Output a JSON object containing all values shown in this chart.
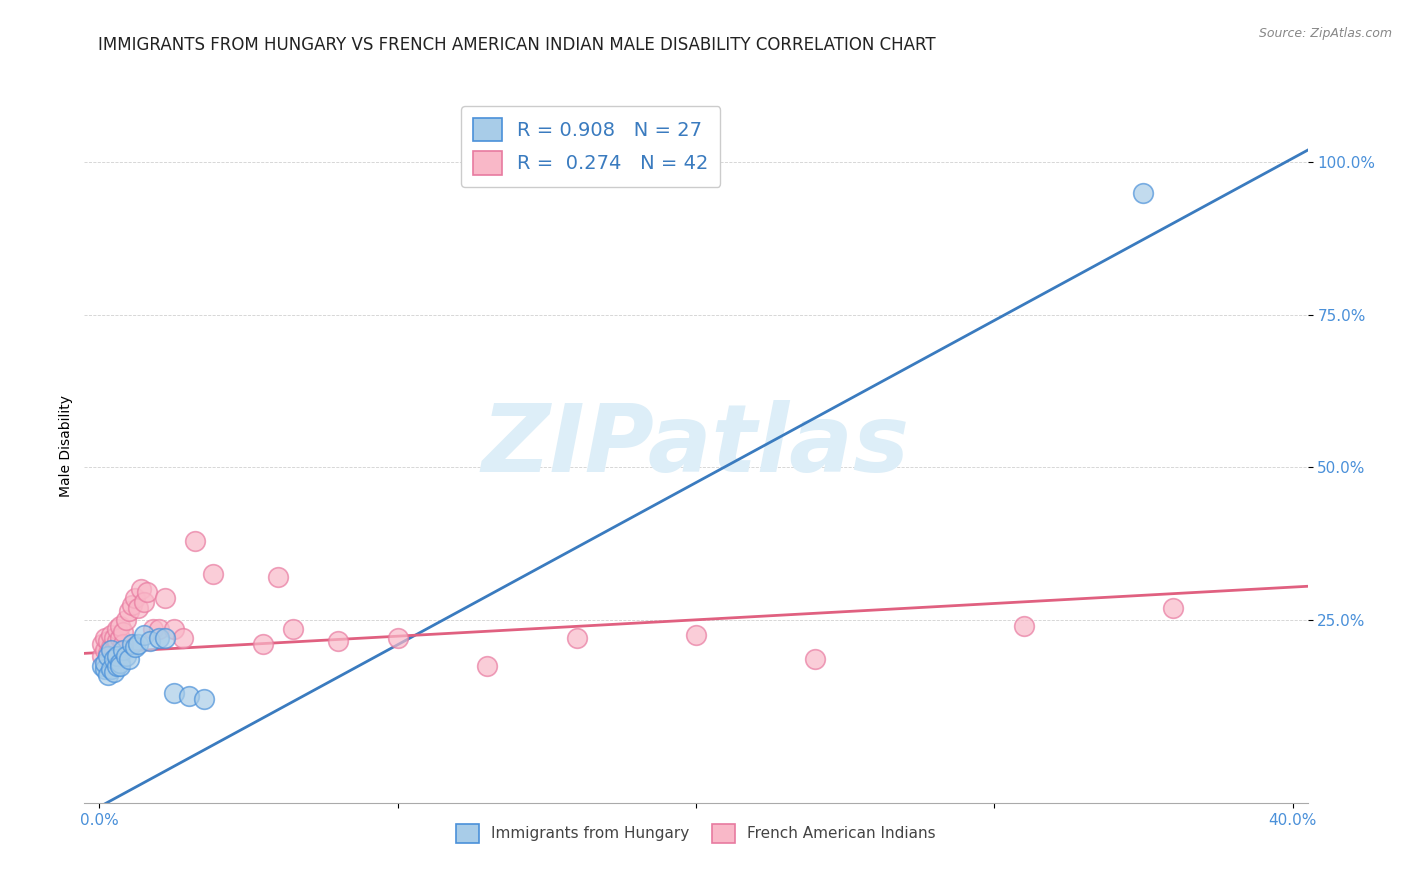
{
  "title": "IMMIGRANTS FROM HUNGARY VS FRENCH AMERICAN INDIAN MALE DISABILITY CORRELATION CHART",
  "source": "Source: ZipAtlas.com",
  "ylabel": "Male Disability",
  "xlim": [
    -0.005,
    0.405
  ],
  "ylim": [
    -0.05,
    1.12
  ],
  "ytick_vals": [
    0.25,
    0.5,
    0.75,
    1.0
  ],
  "ytick_labels": [
    "25.0%",
    "50.0%",
    "75.0%",
    "100.0%"
  ],
  "xtick_vals": [
    0.0,
    0.1,
    0.2,
    0.3,
    0.4
  ],
  "xtick_labels": [
    "0.0%",
    "",
    "",
    "",
    "40.0%"
  ],
  "blue_R": 0.908,
  "blue_N": 27,
  "pink_R": 0.274,
  "pink_N": 42,
  "blue_scatter_color": "#a8cce8",
  "pink_scatter_color": "#f9b8c8",
  "blue_edge_color": "#4a90d9",
  "pink_edge_color": "#e87aa0",
  "blue_line_color": "#3a7bbf",
  "pink_line_color": "#e06080",
  "tick_color": "#4a90d9",
  "watermark_text": "ZIPatlas",
  "watermark_color": "#ddeef8",
  "blue_line_x0": -0.005,
  "blue_line_y0": -0.07,
  "blue_line_x1": 0.405,
  "blue_line_y1": 1.02,
  "pink_line_x0": -0.005,
  "pink_line_y0": 0.195,
  "pink_line_x1": 0.405,
  "pink_line_y1": 0.305,
  "blue_scatter_x": [
    0.001,
    0.002,
    0.002,
    0.003,
    0.003,
    0.004,
    0.004,
    0.005,
    0.005,
    0.006,
    0.006,
    0.007,
    0.007,
    0.008,
    0.009,
    0.01,
    0.011,
    0.012,
    0.013,
    0.015,
    0.017,
    0.02,
    0.022,
    0.025,
    0.03,
    0.035,
    0.35
  ],
  "blue_scatter_y": [
    0.175,
    0.17,
    0.18,
    0.16,
    0.19,
    0.17,
    0.2,
    0.165,
    0.185,
    0.175,
    0.19,
    0.18,
    0.175,
    0.2,
    0.19,
    0.185,
    0.21,
    0.205,
    0.21,
    0.225,
    0.215,
    0.22,
    0.22,
    0.13,
    0.125,
    0.12,
    0.95
  ],
  "pink_scatter_x": [
    0.001,
    0.001,
    0.002,
    0.002,
    0.003,
    0.003,
    0.004,
    0.004,
    0.005,
    0.005,
    0.006,
    0.006,
    0.007,
    0.007,
    0.008,
    0.008,
    0.009,
    0.01,
    0.011,
    0.012,
    0.013,
    0.014,
    0.015,
    0.016,
    0.018,
    0.02,
    0.022,
    0.025,
    0.028,
    0.032,
    0.038,
    0.055,
    0.06,
    0.065,
    0.08,
    0.1,
    0.13,
    0.16,
    0.2,
    0.24,
    0.31,
    0.36
  ],
  "pink_scatter_y": [
    0.19,
    0.21,
    0.2,
    0.22,
    0.195,
    0.215,
    0.205,
    0.225,
    0.2,
    0.22,
    0.215,
    0.235,
    0.22,
    0.24,
    0.21,
    0.23,
    0.25,
    0.265,
    0.275,
    0.285,
    0.27,
    0.3,
    0.28,
    0.295,
    0.235,
    0.235,
    0.285,
    0.235,
    0.22,
    0.38,
    0.325,
    0.21,
    0.32,
    0.235,
    0.215,
    0.22,
    0.175,
    0.22,
    0.225,
    0.185,
    0.24,
    0.27
  ],
  "title_fontsize": 12,
  "axis_label_fontsize": 10,
  "tick_fontsize": 11,
  "legend_fontsize": 14,
  "source_fontsize": 9
}
